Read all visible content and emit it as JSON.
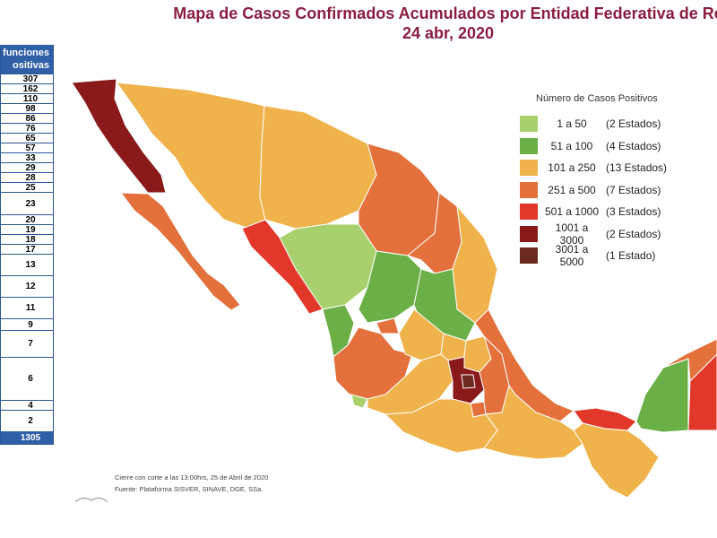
{
  "title": {
    "line1": "Mapa de Casos Confirmados Acumulados por Entidad Federativa de Re",
    "line2": "24 abr, 2020"
  },
  "table": {
    "header_line1": "funciones",
    "header_line2": "ositivas",
    "rows": [
      "307",
      "162",
      "110",
      "98",
      "86",
      "76",
      "65",
      "57",
      "33",
      "29",
      "28",
      "25",
      "23",
      "20",
      "19",
      "18",
      "17",
      "13",
      "12",
      "11",
      "9",
      "7",
      "6",
      "4",
      "2"
    ],
    "total": "1305"
  },
  "legend": {
    "title": "Número de Casos Positivos",
    "items": [
      {
        "range": "1 a 50",
        "count": "(2 Estados)",
        "color": "#a8d16e"
      },
      {
        "range": "51 a 100",
        "count": "(4 Estados)",
        "color": "#6ab046"
      },
      {
        "range": "101 a 250",
        "count": "(13 Estados)",
        "color": "#f0b24a"
      },
      {
        "range": "251 a 500",
        "count": "(7 Estados)",
        "color": "#e4713b"
      },
      {
        "range": "501 a 1000",
        "count": "(3 Estados)",
        "color": "#e2382a"
      },
      {
        "range": "1001 a 3000",
        "count": "(2 Estados)",
        "color": "#8a1a1a"
      },
      {
        "range": "3001 a 5000",
        "count": "(1 Estado)",
        "color": "#6b2a1f"
      }
    ]
  },
  "notes": {
    "line1": "Cierre con corte a las 13:00hrs, 25 de Abril de 2020",
    "line2": "Fuente: Plataforma SISVER, SINAVE, DGE, SSa."
  }
}
